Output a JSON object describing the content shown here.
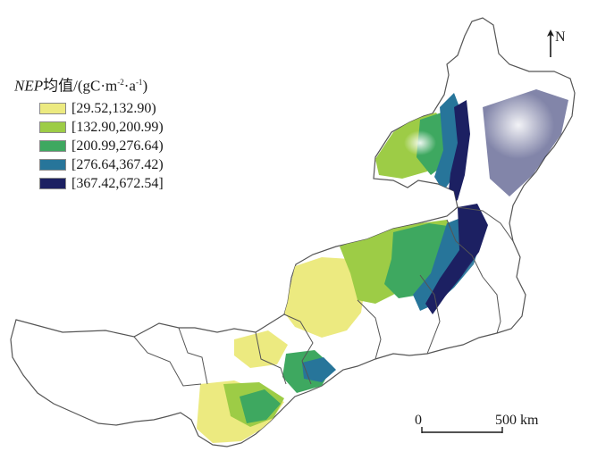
{
  "legend": {
    "title_var": "NEP",
    "title_mid": "均值/(gC·m",
    "title_exp1": "-2",
    "title_sep": "·a",
    "title_exp2": "-1",
    "title_end": ")",
    "classes": [
      {
        "label": "[29.52,132.90)",
        "color": "#ecea80"
      },
      {
        "label": "[132.90,200.99)",
        "color": "#9dcc46"
      },
      {
        "label": "[200.99,276.64)",
        "color": "#3ea860"
      },
      {
        "label": "[276.64,367.42)",
        "color": "#27759a"
      },
      {
        "label": "[367.42,672.54]",
        "color": "#1c2062"
      }
    ]
  },
  "north_arrow": {
    "label": "N"
  },
  "scale_bar": {
    "zero": "0",
    "max_label": "500 km"
  },
  "colors": {
    "boundary": "#555555",
    "background": "#ffffff"
  }
}
